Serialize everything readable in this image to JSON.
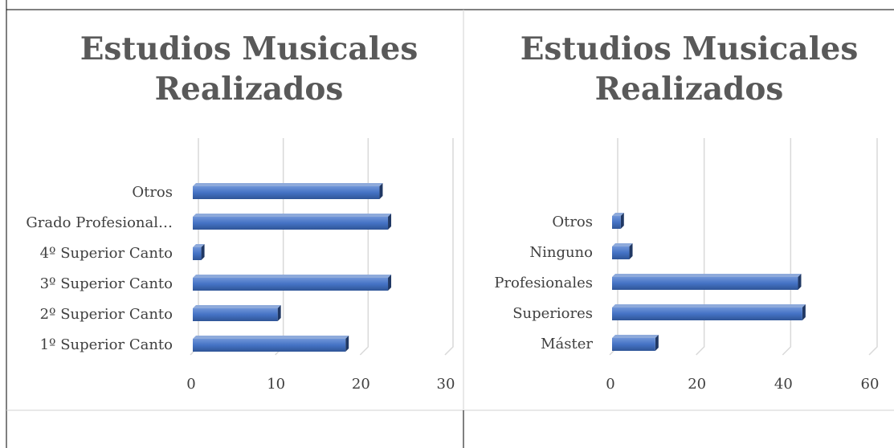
{
  "chart_data": [
    {
      "type": "bar",
      "title": "Estudios Musicales Realizados",
      "categories": [
        "1º Superior Canto",
        "2º Superior Canto",
        "3º Superior Canto",
        "4º Superior Canto",
        "Grado Profesional…",
        "Otros"
      ],
      "values": [
        18,
        10,
        23,
        1,
        23,
        22
      ],
      "color": "#4472c4",
      "xlim": [
        0,
        30
      ],
      "xticks": [
        0,
        10,
        20,
        30
      ],
      "grid": true
    },
    {
      "type": "bar",
      "title": "Estudios Musicales Realizados",
      "categories": [
        "Máster",
        "Superiores",
        "Profesionales",
        "Ninguno",
        "Otros"
      ],
      "values": [
        10,
        44,
        43,
        4,
        2
      ],
      "color": "#4472c4",
      "xlim": [
        0,
        60
      ],
      "xticks": [
        0,
        20,
        40,
        60
      ],
      "grid": true
    }
  ]
}
